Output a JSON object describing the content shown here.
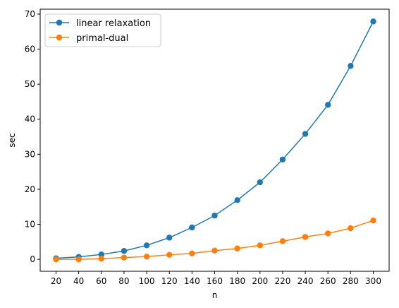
{
  "chart_data": {
    "type": "line",
    "title": "",
    "xlabel": "n",
    "ylabel": "sec",
    "x": [
      20,
      40,
      60,
      80,
      100,
      120,
      140,
      160,
      180,
      200,
      220,
      240,
      260,
      280,
      300
    ],
    "x_ticks": [
      20,
      40,
      60,
      80,
      100,
      120,
      140,
      160,
      180,
      200,
      220,
      240,
      260,
      280,
      300
    ],
    "y_ticks": [
      0,
      10,
      20,
      30,
      40,
      50,
      60,
      70
    ],
    "xlim": [
      6,
      314
    ],
    "ylim": [
      -3.4,
      71.4
    ],
    "grid": false,
    "legend": "top-left",
    "series": [
      {
        "name": "linear relaxation",
        "color": "#1f77b4",
        "marker": "circle",
        "values": [
          0.3,
          0.7,
          1.4,
          2.4,
          4.0,
          6.2,
          9.1,
          12.5,
          16.9,
          22.0,
          28.5,
          35.8,
          44.1,
          55.2,
          67.9
        ]
      },
      {
        "name": "primal-dual",
        "color": "#ff7f0e",
        "marker": "circle",
        "values": [
          0.0,
          0.0,
          0.2,
          0.5,
          0.8,
          1.3,
          1.7,
          2.5,
          3.1,
          4.0,
          5.2,
          6.4,
          7.4,
          8.9,
          11.1
        ]
      }
    ]
  }
}
